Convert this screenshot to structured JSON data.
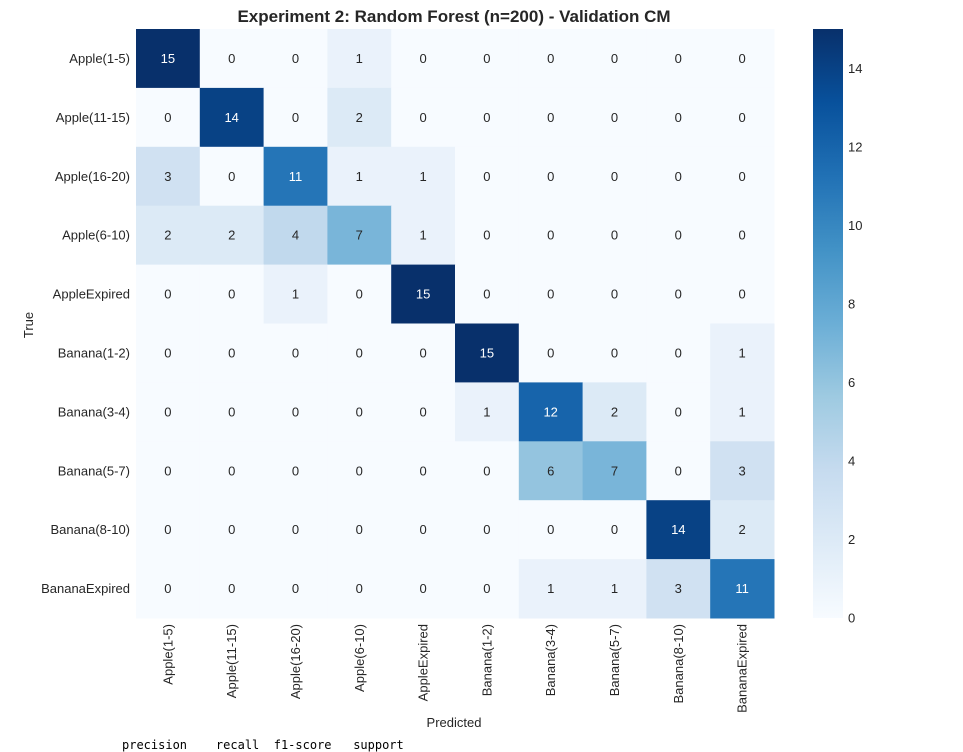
{
  "chart_data": {
    "type": "heatmap",
    "title": "Experiment 2: Random Forest (n=200) - Validation CM",
    "xlabel": "Predicted",
    "ylabel": "True",
    "x_categories": [
      "Apple(1-5)",
      "Apple(11-15)",
      "Apple(16-20)",
      "Apple(6-10)",
      "AppleExpired",
      "Banana(1-2)",
      "Banana(3-4)",
      "Banana(5-7)",
      "Banana(8-10)",
      "BananaExpired"
    ],
    "y_categories": [
      "Apple(1-5)",
      "Apple(11-15)",
      "Apple(16-20)",
      "Apple(6-10)",
      "AppleExpired",
      "Banana(1-2)",
      "Banana(3-4)",
      "Banana(5-7)",
      "Banana(8-10)",
      "BananaExpired"
    ],
    "matrix": [
      [
        15,
        0,
        0,
        1,
        0,
        0,
        0,
        0,
        0,
        0
      ],
      [
        0,
        14,
        0,
        2,
        0,
        0,
        0,
        0,
        0,
        0
      ],
      [
        3,
        0,
        11,
        1,
        1,
        0,
        0,
        0,
        0,
        0
      ],
      [
        2,
        2,
        4,
        7,
        1,
        0,
        0,
        0,
        0,
        0
      ],
      [
        0,
        0,
        1,
        0,
        15,
        0,
        0,
        0,
        0,
        0
      ],
      [
        0,
        0,
        0,
        0,
        0,
        15,
        0,
        0,
        0,
        1
      ],
      [
        0,
        0,
        0,
        0,
        0,
        1,
        12,
        2,
        0,
        1
      ],
      [
        0,
        0,
        0,
        0,
        0,
        0,
        6,
        7,
        0,
        3
      ],
      [
        0,
        0,
        0,
        0,
        0,
        0,
        0,
        0,
        14,
        2
      ],
      [
        0,
        0,
        0,
        0,
        0,
        0,
        1,
        1,
        3,
        11
      ]
    ],
    "colorbar": {
      "min": 0,
      "max": 15,
      "ticks": [
        0,
        2,
        4,
        6,
        8,
        10,
        12,
        14
      ]
    },
    "colormap": "Blues",
    "colors": {
      "low": "#f7fbff",
      "high": "#08306b"
    }
  },
  "report_tail": "precision    recall  f1-score   support"
}
